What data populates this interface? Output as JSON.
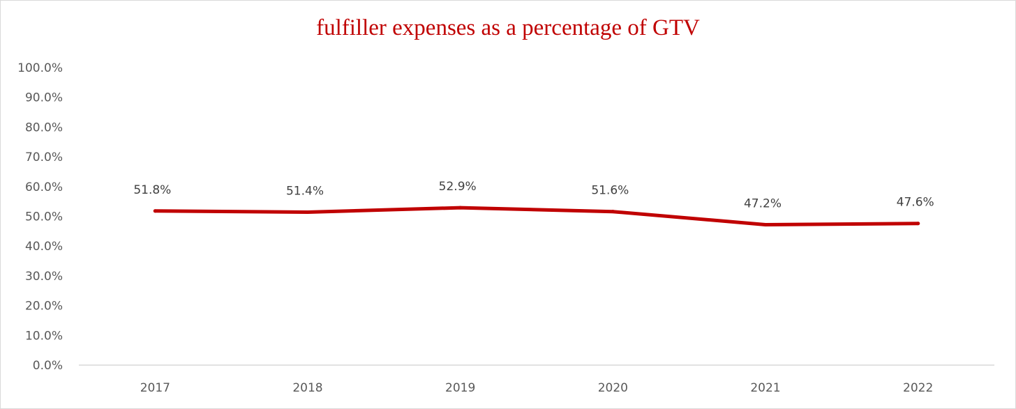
{
  "chart_data": {
    "type": "line",
    "title": "fulfiller expenses as a percentage of GTV",
    "categories": [
      "2017",
      "2018",
      "2019",
      "2020",
      "2021",
      "2022"
    ],
    "series": [
      {
        "values": [
          51.8,
          51.4,
          52.9,
          51.6,
          47.2,
          47.6
        ],
        "labels": [
          "51.8%",
          "51.4%",
          "52.9%",
          "51.6%",
          "47.2%",
          "47.6%"
        ],
        "color": "#c00000"
      }
    ],
    "ylim": [
      0,
      100
    ],
    "y_ticks": [
      "0.0%",
      "10.0%",
      "20.0%",
      "30.0%",
      "40.0%",
      "50.0%",
      "60.0%",
      "70.0%",
      "80.0%",
      "90.0%",
      "100.0%"
    ],
    "y_tick_values": [
      0,
      10,
      20,
      30,
      40,
      50,
      60,
      70,
      80,
      90,
      100
    ],
    "grid": false,
    "legend": "none",
    "axis_color": "#d9d9d9"
  }
}
